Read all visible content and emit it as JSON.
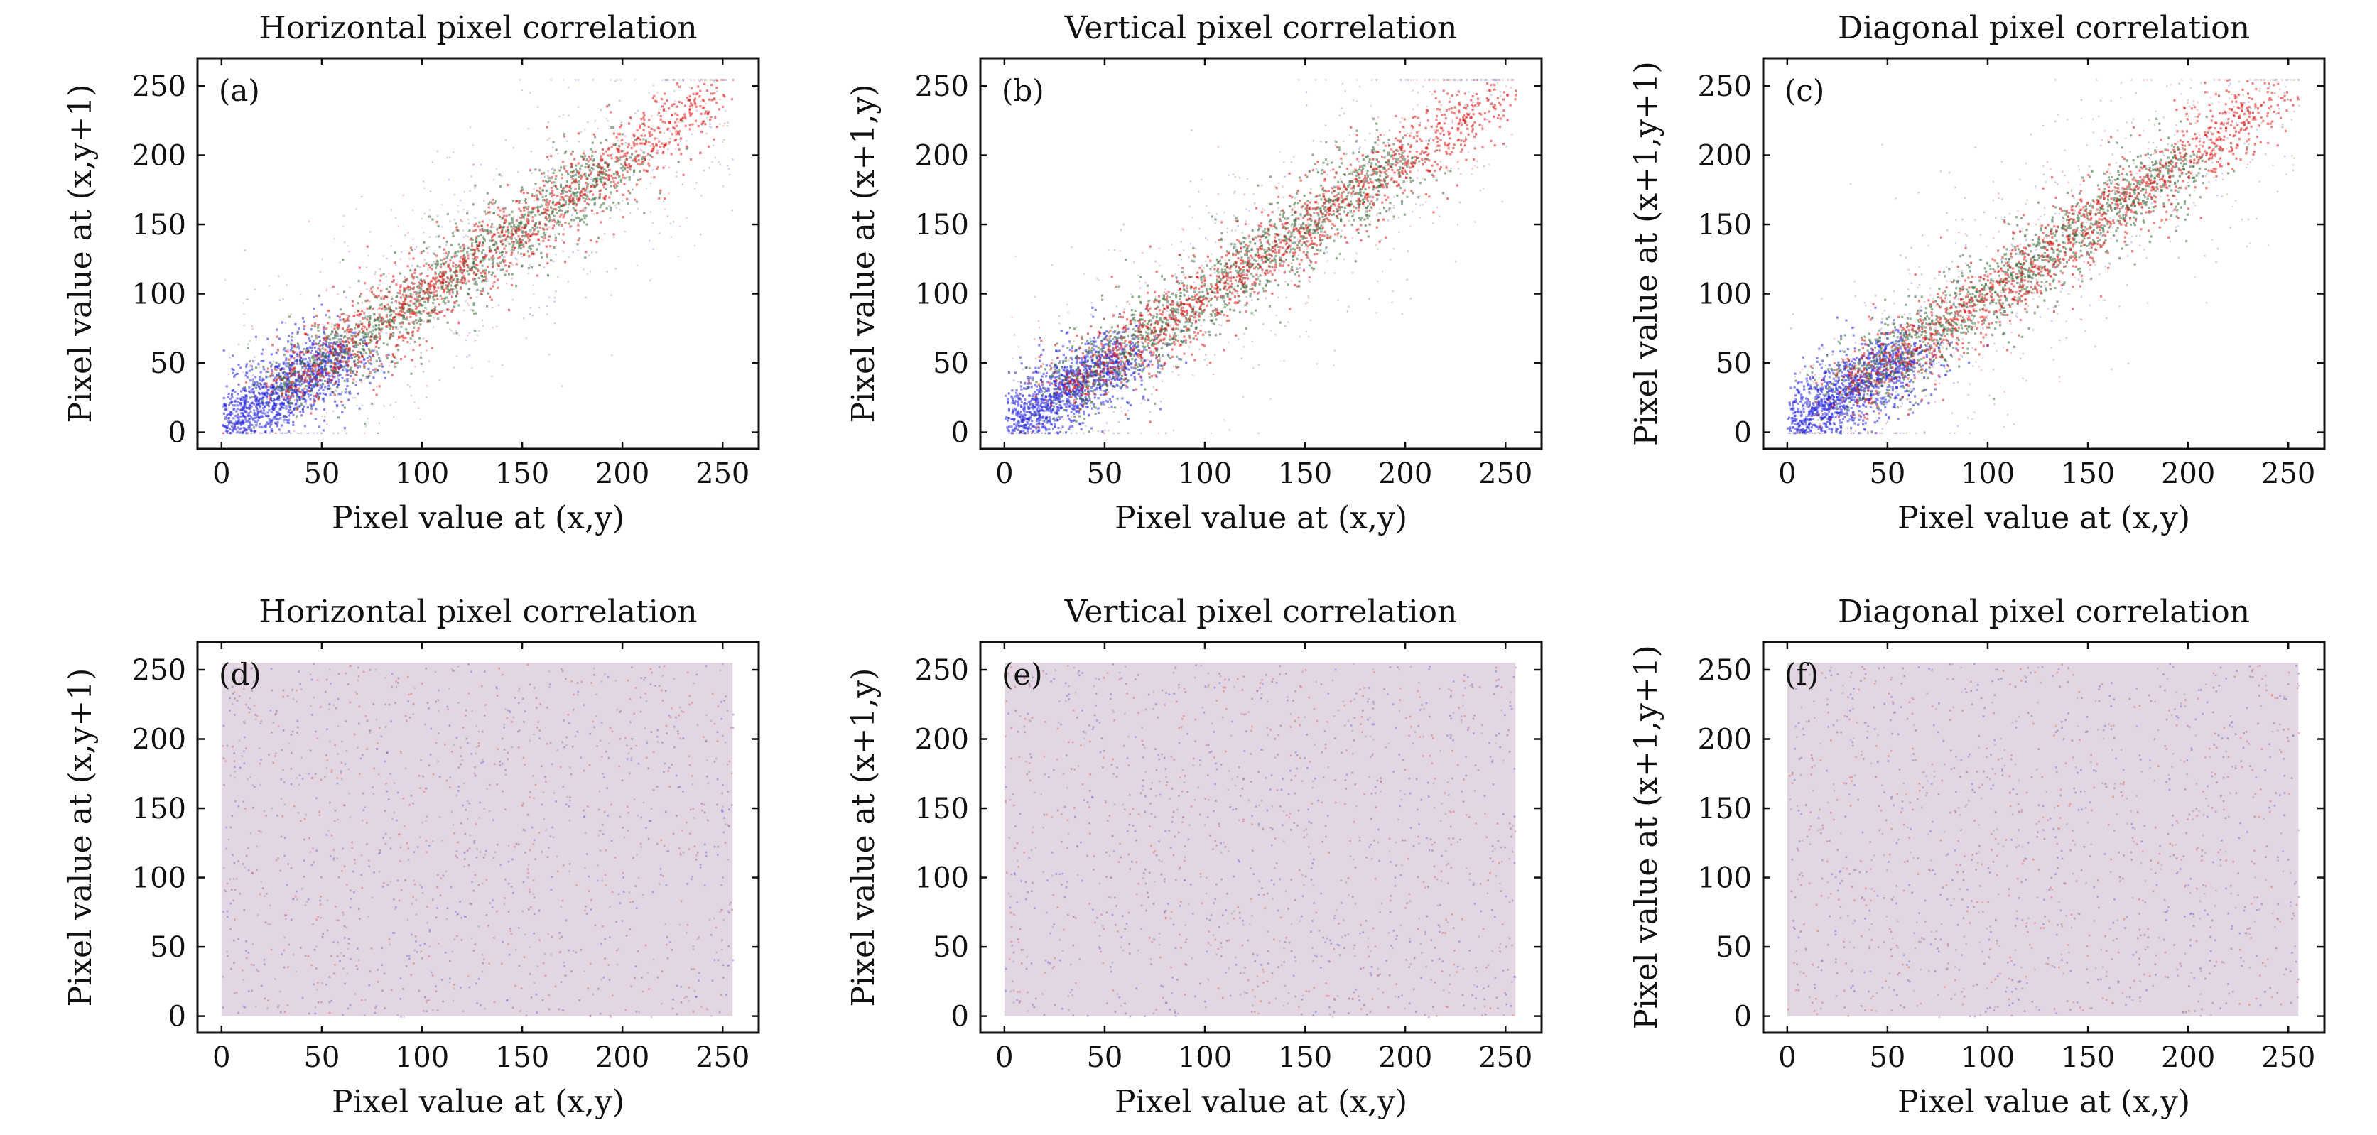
{
  "chart_data": [
    {
      "type": "scatter",
      "panel": "(a)",
      "pattern": "correlated",
      "title": "Horizontal pixel correlation",
      "xlabel": "Pixel value at (x,y)",
      "ylabel": "Pixel value at (x,y+1)",
      "xlim": [
        -12,
        268
      ],
      "ylim": [
        -12,
        270
      ],
      "xticks": [
        0,
        50,
        100,
        150,
        200,
        250
      ],
      "yticks": [
        0,
        50,
        100,
        150,
        200,
        250
      ],
      "series": [
        {
          "name": "blue channel",
          "color": "#2a2ae0",
          "center_range": [
            0,
            60
          ]
        },
        {
          "name": "green channel",
          "color": "#3d6b3d",
          "center_range": [
            30,
            200
          ]
        },
        {
          "name": "red channel",
          "color": "#e01a1a",
          "center_range": [
            30,
            245
          ]
        }
      ]
    },
    {
      "type": "scatter",
      "panel": "(b)",
      "pattern": "correlated",
      "title": "Vertical pixel correlation",
      "xlabel": "Pixel value at (x,y)",
      "ylabel": "Pixel value at (x+1,y)",
      "xlim": [
        -12,
        268
      ],
      "ylim": [
        -12,
        270
      ],
      "xticks": [
        0,
        50,
        100,
        150,
        200,
        250
      ],
      "yticks": [
        0,
        50,
        100,
        150,
        200,
        250
      ],
      "series": [
        {
          "name": "blue channel",
          "color": "#2a2ae0",
          "center_range": [
            0,
            60
          ]
        },
        {
          "name": "green channel",
          "color": "#3d6b3d",
          "center_range": [
            30,
            200
          ]
        },
        {
          "name": "red channel",
          "color": "#e01a1a",
          "center_range": [
            30,
            245
          ]
        }
      ]
    },
    {
      "type": "scatter",
      "panel": "(c)",
      "pattern": "correlated",
      "title": "Diagonal pixel correlation",
      "xlabel": "Pixel value at (x,y)",
      "ylabel": "Pixel value at (x+1,y+1)",
      "xlim": [
        -12,
        268
      ],
      "ylim": [
        -12,
        270
      ],
      "xticks": [
        0,
        50,
        100,
        150,
        200,
        250
      ],
      "yticks": [
        0,
        50,
        100,
        150,
        200,
        250
      ],
      "series": [
        {
          "name": "blue channel",
          "color": "#2a2ae0",
          "center_range": [
            0,
            60
          ]
        },
        {
          "name": "green channel",
          "color": "#3d6b3d",
          "center_range": [
            30,
            200
          ]
        },
        {
          "name": "red channel",
          "color": "#e01a1a",
          "center_range": [
            30,
            245
          ]
        }
      ]
    },
    {
      "type": "scatter",
      "panel": "(d)",
      "pattern": "uniform",
      "title": "Horizontal pixel correlation",
      "xlabel": "Pixel value at (x,y)",
      "ylabel": "Pixel value at (x,y+1)",
      "xlim": [
        -12,
        268
      ],
      "ylim": [
        -12,
        270
      ],
      "xticks": [
        0,
        50,
        100,
        150,
        200,
        250
      ],
      "yticks": [
        0,
        50,
        100,
        150,
        200,
        250
      ],
      "value_range": [
        0,
        255
      ],
      "series": [
        {
          "name": "mixed channels",
          "color": "#c8b4c8"
        }
      ]
    },
    {
      "type": "scatter",
      "panel": "(e)",
      "pattern": "uniform",
      "title": "Vertical pixel correlation",
      "xlabel": "Pixel value at (x,y)",
      "ylabel": "Pixel value at (x+1,y)",
      "xlim": [
        -12,
        268
      ],
      "ylim": [
        -12,
        270
      ],
      "xticks": [
        0,
        50,
        100,
        150,
        200,
        250
      ],
      "yticks": [
        0,
        50,
        100,
        150,
        200,
        250
      ],
      "value_range": [
        0,
        255
      ],
      "series": [
        {
          "name": "mixed channels",
          "color": "#c8b4c8"
        }
      ]
    },
    {
      "type": "scatter",
      "panel": "(f)",
      "pattern": "uniform",
      "title": "Diagonal pixel correlation",
      "xlabel": "Pixel value at (x,y)",
      "ylabel": "Pixel value at (x+1,y+1)",
      "xlim": [
        -12,
        268
      ],
      "ylim": [
        -12,
        270
      ],
      "xticks": [
        0,
        50,
        100,
        150,
        200,
        250
      ],
      "yticks": [
        0,
        50,
        100,
        150,
        200,
        250
      ],
      "value_range": [
        0,
        255
      ],
      "series": [
        {
          "name": "mixed channels",
          "color": "#c8b4c8"
        }
      ]
    }
  ]
}
